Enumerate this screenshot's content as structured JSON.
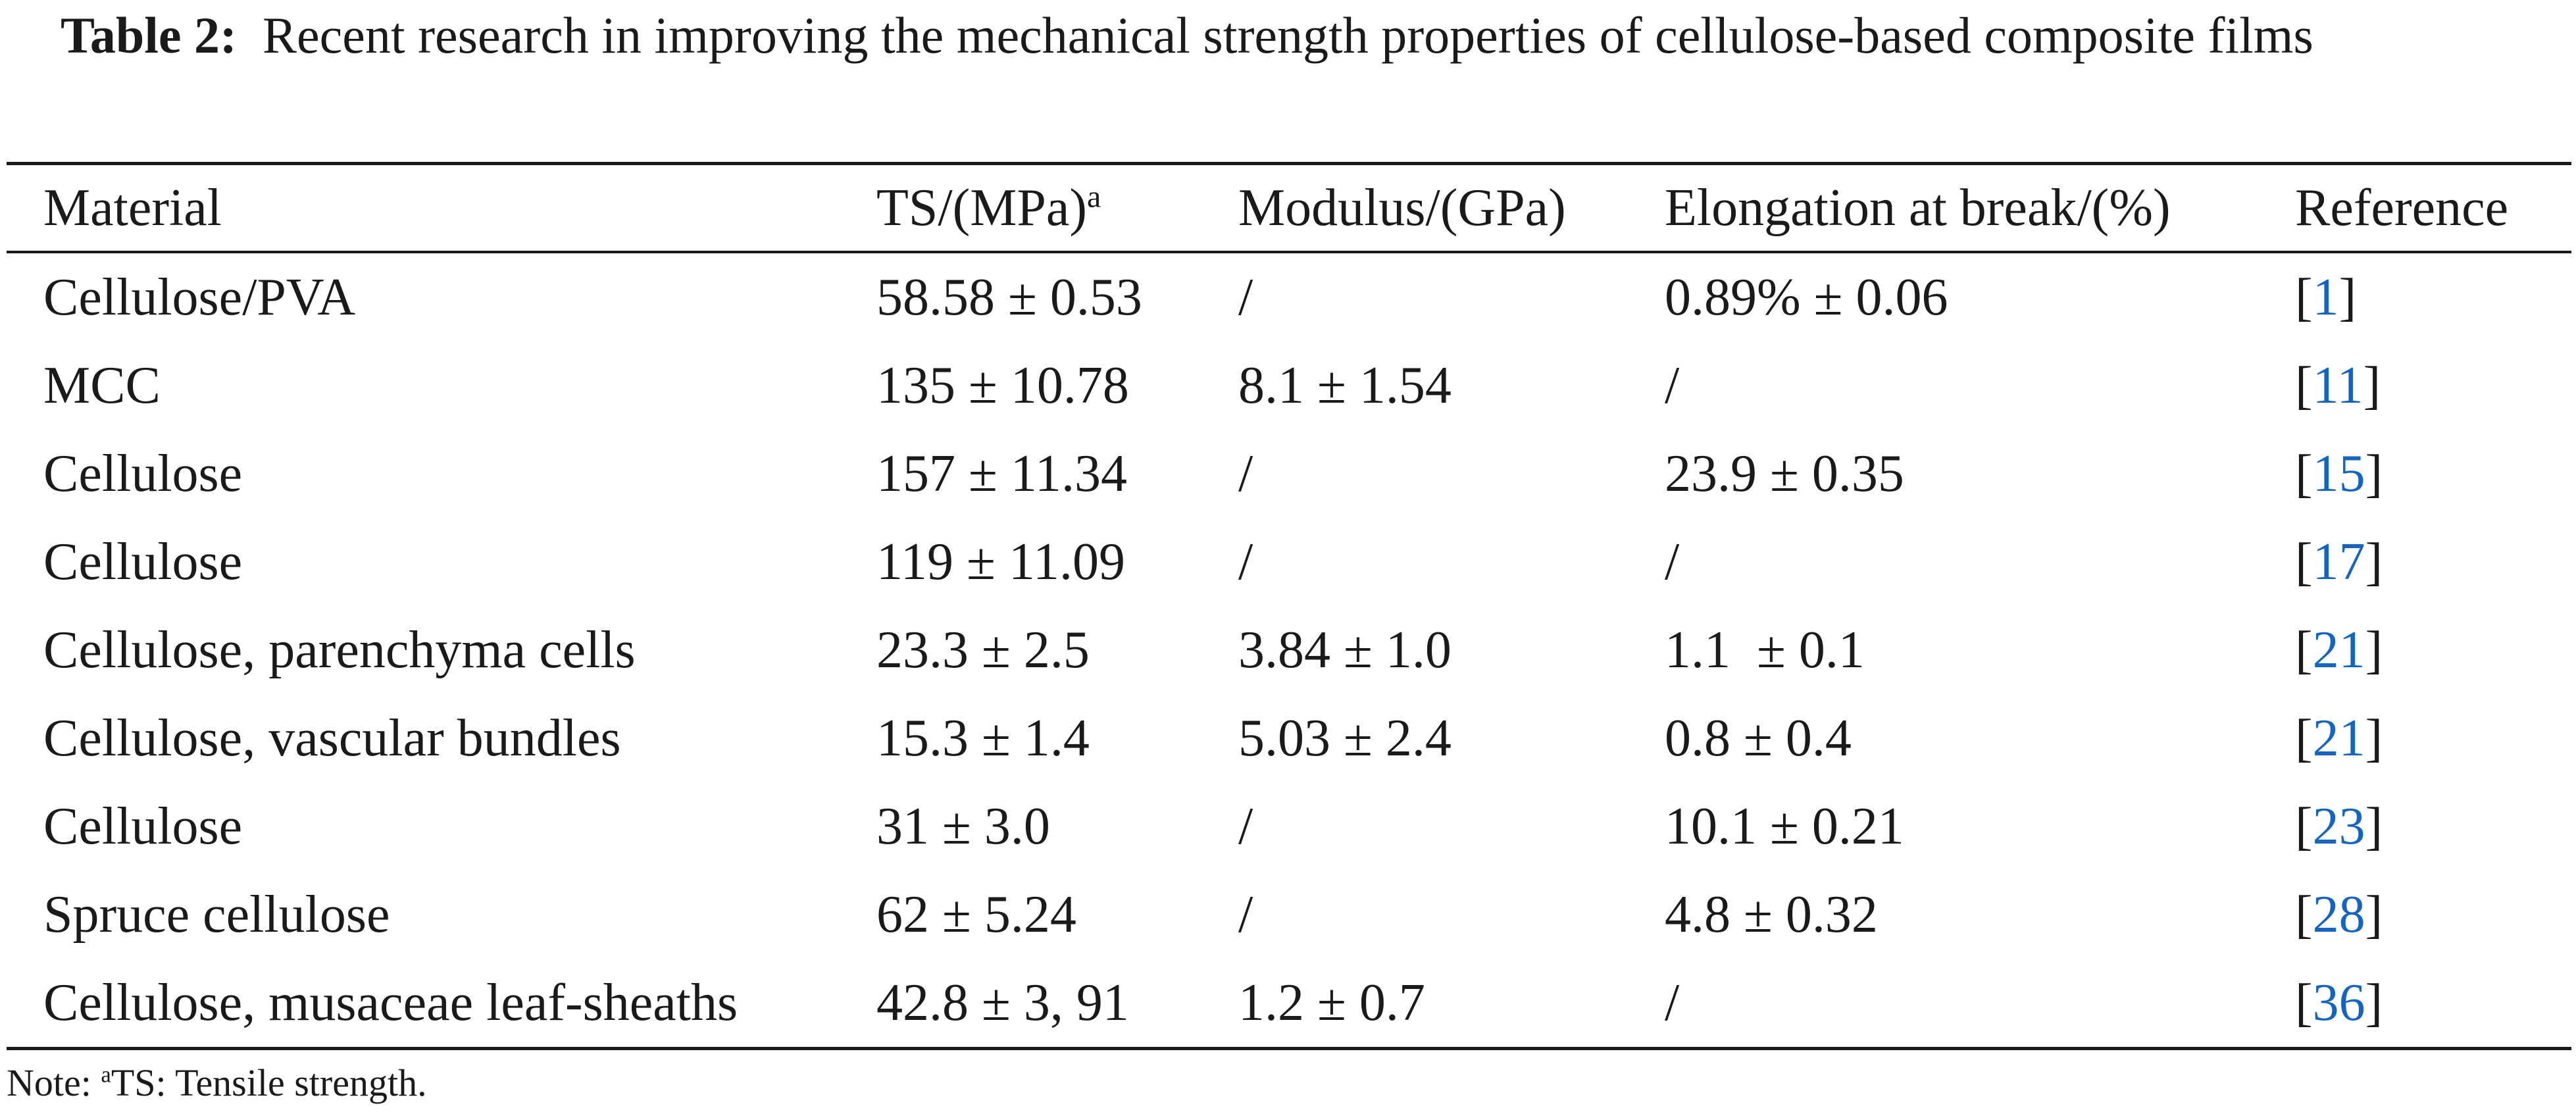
{
  "caption": {
    "label": "Table 2:",
    "text": "Recent research in improving the mechanical strength properties of cellulose-based composite films"
  },
  "table": {
    "headers": {
      "material": "Material",
      "ts": "TS/(MPa)",
      "ts_sup": "a",
      "modulus": "Modulus/(GPa)",
      "elongation": "Elongation at break/(%)",
      "reference": "Reference"
    },
    "rows": [
      {
        "material": "Cellulose/PVA",
        "ts": "58.58 ± 0.53",
        "modulus": "/",
        "elongation": "0.89% ± 0.06",
        "ref": "1"
      },
      {
        "material": "MCC",
        "ts": "135 ± 10.78",
        "modulus": "8.1 ± 1.54",
        "elongation": "/",
        "ref": "11"
      },
      {
        "material": "Cellulose",
        "ts": "157 ± 11.34",
        "modulus": "/",
        "elongation": "23.9 ± 0.35",
        "ref": "15"
      },
      {
        "material": "Cellulose",
        "ts": "119 ± 11.09",
        "modulus": "/",
        "elongation": "/",
        "ref": "17"
      },
      {
        "material": "Cellulose, parenchyma cells",
        "ts": "23.3 ± 2.5",
        "modulus": "3.84 ± 1.0",
        "elongation": "1.1  ± 0.1",
        "ref": "21"
      },
      {
        "material": "Cellulose, vascular bundles",
        "ts": "15.3 ± 1.4",
        "modulus": "5.03 ± 2.4",
        "elongation": "0.8 ± 0.4",
        "ref": "21"
      },
      {
        "material": "Cellulose",
        "ts": "31 ± 3.0",
        "modulus": "/",
        "elongation": "10.1 ± 0.21",
        "ref": "23"
      },
      {
        "material": "Spruce cellulose",
        "ts": "62 ± 5.24",
        "modulus": "/",
        "elongation": "4.8 ± 0.32",
        "ref": "28"
      },
      {
        "material": "Cellulose, musaceae leaf-sheaths",
        "ts": "42.8 ± 3, 91",
        "modulus": "1.2 ± 0.7",
        "elongation": "/",
        "ref": "36"
      }
    ]
  },
  "note": {
    "prefix": "Note: ",
    "sup": "a",
    "text": "TS: Tensile strength."
  },
  "colors": {
    "text": "#1a1a1a",
    "link": "#1565c0"
  }
}
